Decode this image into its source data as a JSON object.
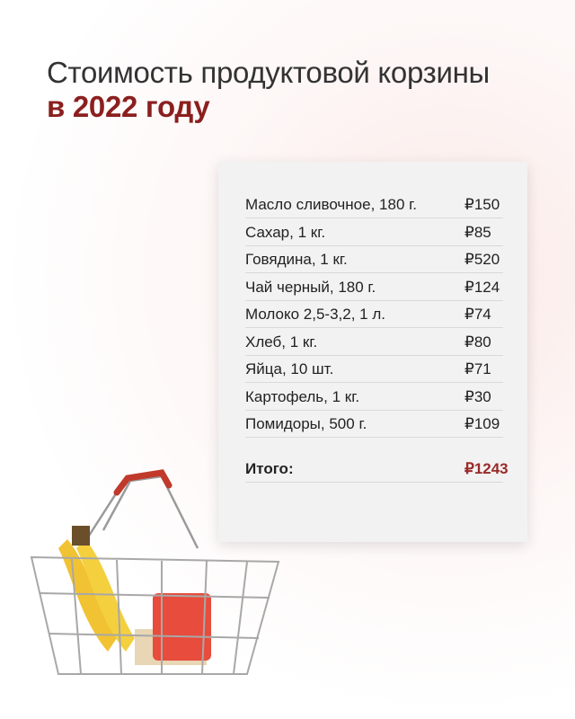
{
  "title": {
    "line1": "Стоимость продуктовой корзины",
    "line2": "в 2022 году"
  },
  "items": [
    {
      "name": "Масло сливочное, 180 г.",
      "price": "₽150"
    },
    {
      "name": "Сахар, 1 кг.",
      "price": "₽85"
    },
    {
      "name": "Говядина, 1 кг.",
      "price": "₽520"
    },
    {
      "name": "Чай черный, 180 г.",
      "price": "₽124"
    },
    {
      "name": "Молоко 2,5-3,2, 1 л.",
      "price": "₽74"
    },
    {
      "name": "Хлеб, 1 кг.",
      "price": "₽80"
    },
    {
      "name": "Яйца, 10 шт.",
      "price": "₽71"
    },
    {
      "name": "Картофель, 1 кг.",
      "price": "₽30"
    },
    {
      "name": "Помидоры, 500 г.",
      "price": "₽109"
    }
  ],
  "total": {
    "label": "Итого:",
    "price": "₽1243"
  },
  "colors": {
    "accent": "#8b1f1f",
    "card": "#f2f2f2"
  },
  "image": "shopping-basket-with-bananas-and-tomatoes"
}
